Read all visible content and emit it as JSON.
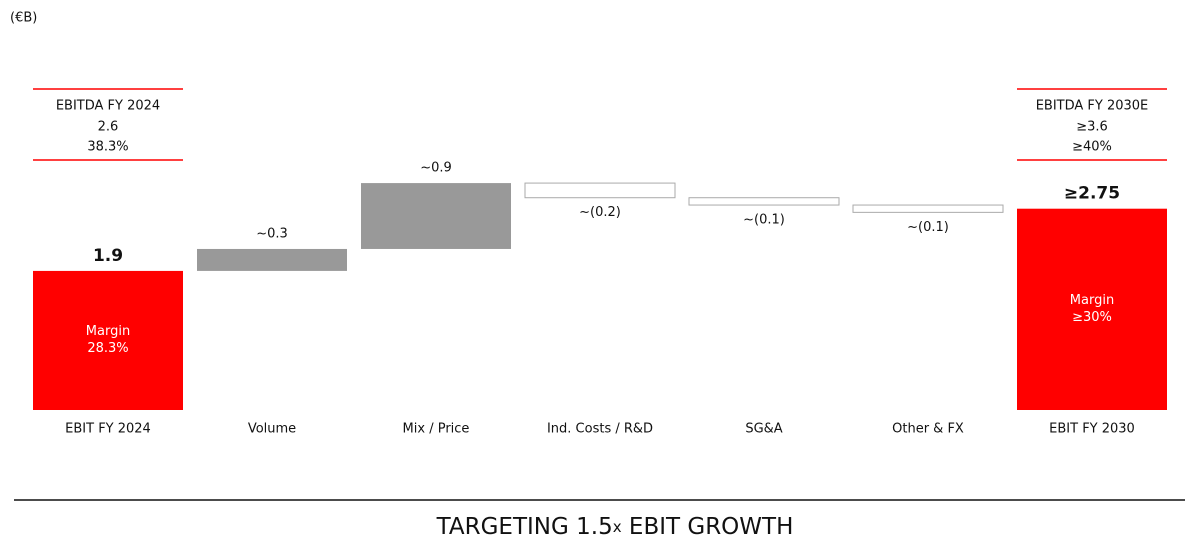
{
  "chart_data": {
    "type": "waterfall",
    "unit": "(€B)",
    "categories": [
      "EBIT FY 2024",
      "Volume",
      "Mix / Price",
      "Ind. Costs / R&D",
      "SG&A",
      "Other & FX",
      "EBIT FY 2030"
    ],
    "values": [
      1.9,
      0.3,
      0.9,
      -0.2,
      -0.1,
      -0.1,
      2.75
    ],
    "value_labels": [
      "1.9",
      "~0.3",
      "~0.9",
      "~(0.2)",
      "~(0.1)",
      "~(0.1)",
      "≥2.75"
    ],
    "total_color": "#ff0000",
    "increase_color": "#999999",
    "decrease_color": "#ffffff",
    "decrease_stroke": "#aaaaaa",
    "ebitda_boxes": [
      {
        "title": "EBITDA FY 2024",
        "value": "2.6",
        "margin": "38.3%"
      },
      {
        "title": "EBITDA FY 2030E",
        "value": "≥3.6",
        "margin": "≥40%"
      }
    ],
    "margin_labels": [
      {
        "label": "Margin",
        "value": "28.3%"
      },
      {
        "label": "Margin",
        "value": "≥30%"
      }
    ],
    "footer": [
      "TARGETING 1.5",
      "x",
      " EBIT GROWTH"
    ]
  }
}
